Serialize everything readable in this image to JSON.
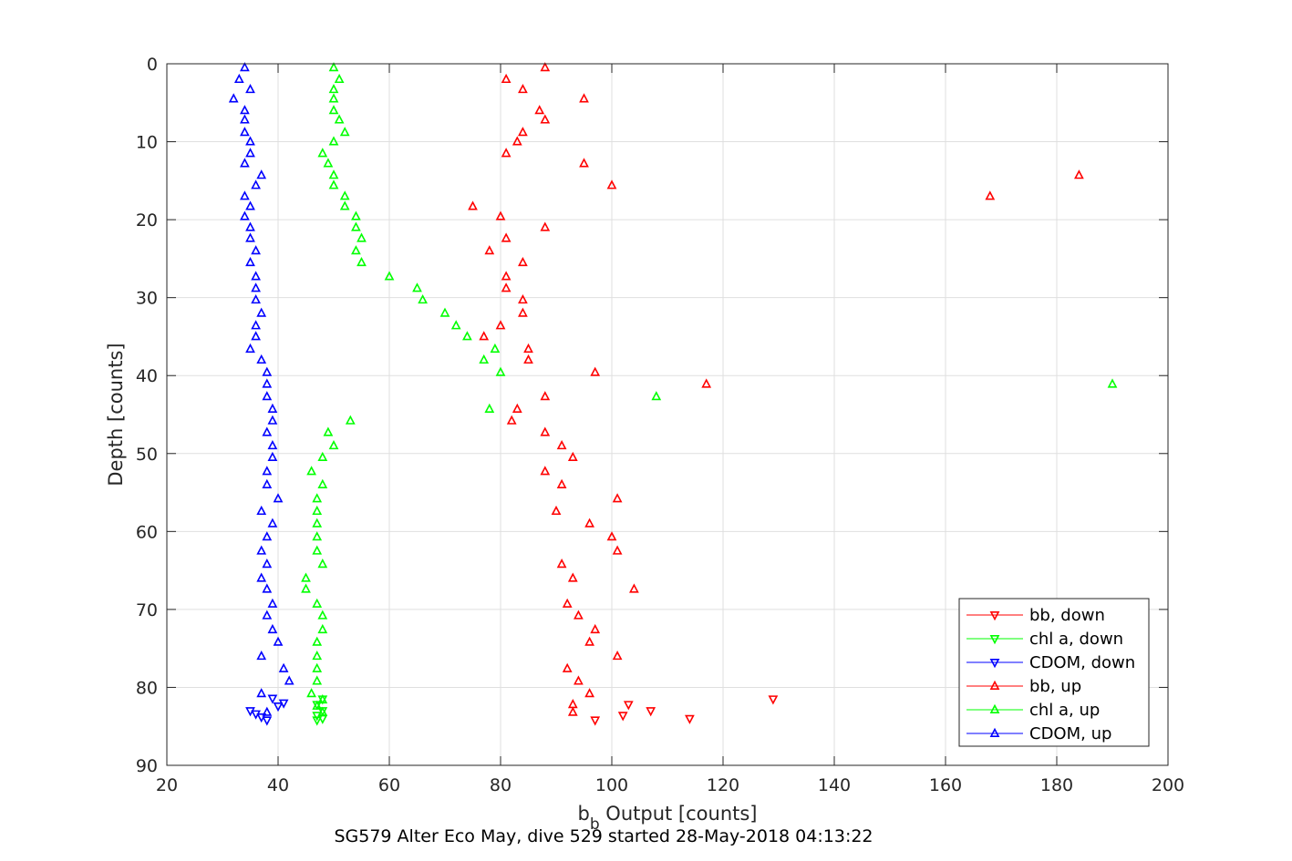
{
  "chart_data": {
    "type": "scatter",
    "xlabel_main": "b",
    "xlabel_sub": "b",
    "xlabel_rest": " Output [counts]",
    "ylabel": "Depth [counts]",
    "caption": "SG579 Alter Eco May, dive 529 started 28-May-2018 04:13:22",
    "xlim": [
      20,
      200
    ],
    "ylim": [
      0,
      90
    ],
    "y_reversed": true,
    "grid": true,
    "legend_position": "bottom-right",
    "x_ticks": [
      "20",
      "40",
      "60",
      "80",
      "100",
      "120",
      "140",
      "160",
      "180",
      "200"
    ],
    "y_ticks": [
      "0",
      "10",
      "20",
      "30",
      "40",
      "50",
      "60",
      "70",
      "80",
      "90"
    ],
    "colors": {
      "red": "#ff0000",
      "green": "#00ff00",
      "blue": "#0000ff"
    },
    "series": [
      {
        "name": "bb, down",
        "color": "#ff0000",
        "marker": "triangle-down",
        "points": [
          [
            97,
            84.2
          ],
          [
            114,
            84
          ],
          [
            102,
            83.6
          ],
          [
            107,
            83
          ],
          [
            103,
            82.2
          ],
          [
            129,
            81.5
          ]
        ]
      },
      {
        "name": "chl a, down",
        "color": "#00ff00",
        "marker": "triangle-down",
        "points": [
          [
            47,
            84.2
          ],
          [
            48,
            84
          ],
          [
            47,
            83.6
          ],
          [
            48,
            83
          ],
          [
            47,
            82.2
          ],
          [
            48,
            81.5
          ]
        ]
      },
      {
        "name": "CDOM, down",
        "color": "#0000ff",
        "marker": "triangle-down",
        "points": [
          [
            38,
            84.2
          ],
          [
            37,
            83.8
          ],
          [
            36,
            83.4
          ],
          [
            35,
            83
          ],
          [
            40,
            82.4
          ],
          [
            41,
            82
          ],
          [
            39,
            81.4
          ]
        ]
      },
      {
        "name": "bb, up",
        "color": "#ff0000",
        "marker": "triangle-up",
        "points": [
          [
            88,
            0.5
          ],
          [
            81,
            2
          ],
          [
            84,
            3.3
          ],
          [
            95,
            4.5
          ],
          [
            87,
            6
          ],
          [
            88,
            7.2
          ],
          [
            84,
            8.8
          ],
          [
            83,
            10
          ],
          [
            81,
            11.5
          ],
          [
            95,
            12.8
          ],
          [
            184,
            14.3
          ],
          [
            100,
            15.6
          ],
          [
            168,
            17
          ],
          [
            75,
            18.3
          ],
          [
            80,
            19.6
          ],
          [
            88,
            21
          ],
          [
            81,
            22.4
          ],
          [
            78,
            24
          ],
          [
            84,
            25.5
          ],
          [
            81,
            27.3
          ],
          [
            81,
            28.8
          ],
          [
            84,
            30.3
          ],
          [
            84,
            32
          ],
          [
            80,
            33.6
          ],
          [
            77,
            35
          ],
          [
            85,
            36.6
          ],
          [
            85,
            38
          ],
          [
            97,
            39.6
          ],
          [
            117,
            41.1
          ],
          [
            88,
            42.7
          ],
          [
            83,
            44.3
          ],
          [
            82,
            45.8
          ],
          [
            88,
            47.3
          ],
          [
            91,
            49
          ],
          [
            93,
            50.5
          ],
          [
            88,
            52.3
          ],
          [
            91,
            54
          ],
          [
            101,
            55.8
          ],
          [
            90,
            57.4
          ],
          [
            96,
            59
          ],
          [
            100,
            60.7
          ],
          [
            101,
            62.5
          ],
          [
            91,
            64.2
          ],
          [
            93,
            66
          ],
          [
            104,
            67.4
          ],
          [
            92,
            69.3
          ],
          [
            94,
            70.8
          ],
          [
            97,
            72.6
          ],
          [
            96,
            74.2
          ],
          [
            101,
            76
          ],
          [
            92,
            77.6
          ],
          [
            94,
            79.2
          ],
          [
            96,
            80.8
          ],
          [
            93,
            82.2
          ],
          [
            93,
            83.2
          ]
        ]
      },
      {
        "name": "chl a, up",
        "color": "#00ff00",
        "marker": "triangle-up",
        "points": [
          [
            50,
            0.5
          ],
          [
            51,
            2
          ],
          [
            50,
            3.3
          ],
          [
            50,
            4.5
          ],
          [
            50,
            6
          ],
          [
            51,
            7.2
          ],
          [
            52,
            8.8
          ],
          [
            50,
            10
          ],
          [
            48,
            11.5
          ],
          [
            49,
            12.8
          ],
          [
            50,
            14.3
          ],
          [
            50,
            15.6
          ],
          [
            52,
            17
          ],
          [
            52,
            18.3
          ],
          [
            54,
            19.6
          ],
          [
            54,
            21
          ],
          [
            55,
            22.4
          ],
          [
            54,
            24
          ],
          [
            55,
            25.5
          ],
          [
            60,
            27.3
          ],
          [
            65,
            28.8
          ],
          [
            66,
            30.3
          ],
          [
            70,
            32
          ],
          [
            72,
            33.6
          ],
          [
            74,
            35
          ],
          [
            79,
            36.6
          ],
          [
            77,
            38
          ],
          [
            80,
            39.6
          ],
          [
            190,
            41.1
          ],
          [
            108,
            42.7
          ],
          [
            78,
            44.3
          ],
          [
            53,
            45.8
          ],
          [
            49,
            47.3
          ],
          [
            50,
            49
          ],
          [
            48,
            50.5
          ],
          [
            46,
            52.3
          ],
          [
            48,
            54
          ],
          [
            47,
            55.8
          ],
          [
            47,
            57.4
          ],
          [
            47,
            59
          ],
          [
            47,
            60.7
          ],
          [
            47,
            62.5
          ],
          [
            48,
            64.2
          ],
          [
            45,
            66
          ],
          [
            45,
            67.4
          ],
          [
            47,
            69.3
          ],
          [
            48,
            70.8
          ],
          [
            48,
            72.6
          ],
          [
            47,
            74.2
          ],
          [
            47,
            76
          ],
          [
            47,
            77.6
          ],
          [
            47,
            79.2
          ],
          [
            46,
            80.8
          ],
          [
            48,
            81.6
          ],
          [
            47,
            82.4
          ],
          [
            48,
            83.2
          ]
        ]
      },
      {
        "name": "CDOM, up",
        "color": "#0000ff",
        "marker": "triangle-up",
        "points": [
          [
            34,
            0.5
          ],
          [
            33,
            2
          ],
          [
            35,
            3.3
          ],
          [
            32,
            4.5
          ],
          [
            34,
            6
          ],
          [
            34,
            7.2
          ],
          [
            34,
            8.8
          ],
          [
            35,
            10
          ],
          [
            35,
            11.5
          ],
          [
            34,
            12.8
          ],
          [
            37,
            14.3
          ],
          [
            36,
            15.6
          ],
          [
            34,
            17
          ],
          [
            35,
            18.3
          ],
          [
            34,
            19.6
          ],
          [
            35,
            21
          ],
          [
            35,
            22.4
          ],
          [
            36,
            24
          ],
          [
            35,
            25.5
          ],
          [
            36,
            27.3
          ],
          [
            36,
            28.8
          ],
          [
            36,
            30.3
          ],
          [
            37,
            32
          ],
          [
            36,
            33.6
          ],
          [
            36,
            35
          ],
          [
            35,
            36.6
          ],
          [
            37,
            38
          ],
          [
            38,
            39.6
          ],
          [
            38,
            41.1
          ],
          [
            38,
            42.7
          ],
          [
            39,
            44.3
          ],
          [
            39,
            45.8
          ],
          [
            38,
            47.3
          ],
          [
            39,
            49
          ],
          [
            39,
            50.5
          ],
          [
            38,
            52.3
          ],
          [
            38,
            54
          ],
          [
            40,
            55.8
          ],
          [
            37,
            57.4
          ],
          [
            39,
            59
          ],
          [
            38,
            60.7
          ],
          [
            37,
            62.5
          ],
          [
            38,
            64.2
          ],
          [
            37,
            66
          ],
          [
            38,
            67.4
          ],
          [
            39,
            69.3
          ],
          [
            38,
            70.8
          ],
          [
            39,
            72.6
          ],
          [
            40,
            74.2
          ],
          [
            37,
            76
          ],
          [
            41,
            77.6
          ],
          [
            42,
            79.2
          ],
          [
            37,
            80.8
          ],
          [
            38,
            83.2
          ]
        ]
      }
    ]
  }
}
